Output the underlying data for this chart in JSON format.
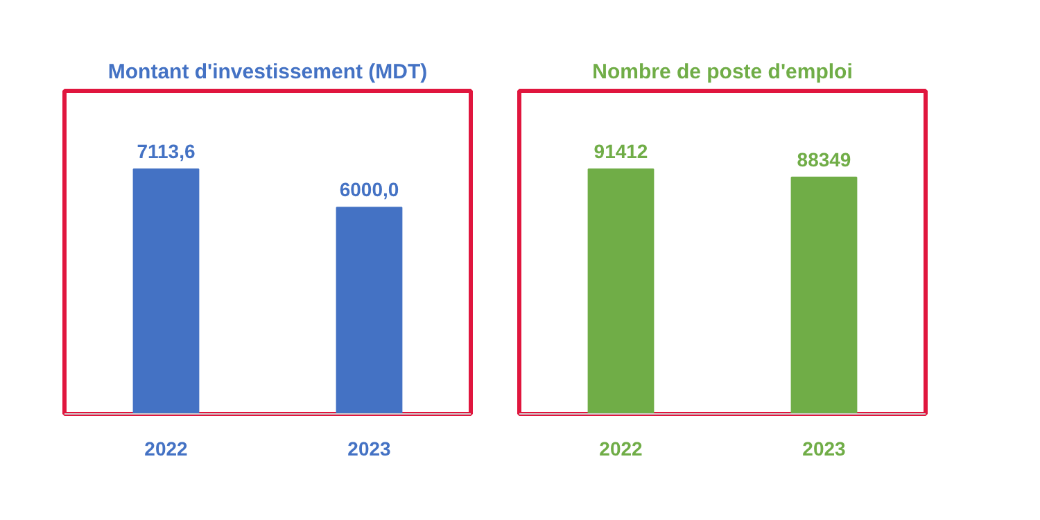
{
  "chart_data": [
    {
      "type": "bar",
      "title": "Montant d'investissement (MDT)",
      "categories": [
        "2022",
        "2023"
      ],
      "values": [
        7113.6,
        6000.0
      ],
      "color": "#4472c4",
      "value_labels": [
        "7113,6",
        "6000,0"
      ]
    },
    {
      "type": "bar",
      "title": "Nombre de poste d'emploi",
      "categories": [
        "2022",
        "2023"
      ],
      "values": [
        91412,
        88349
      ],
      "color": "#70ad47",
      "data_labels": true
    }
  ]
}
